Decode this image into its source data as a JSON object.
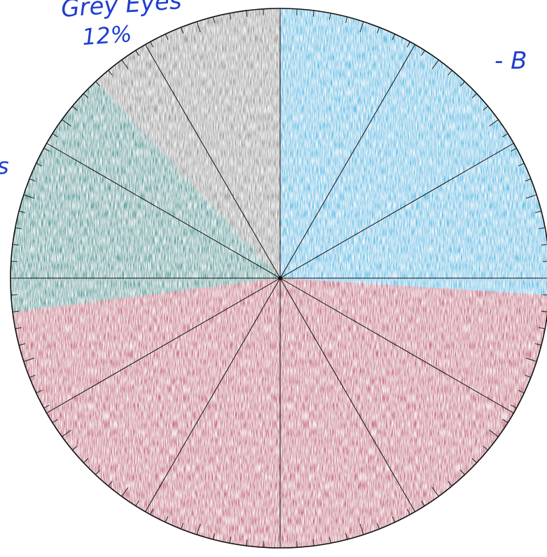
{
  "chart_data": {
    "type": "pie",
    "title": "",
    "slices": [
      {
        "label": "B",
        "value": 26,
        "color": "#4cbfe6"
      },
      {
        "label": "",
        "value": 47,
        "color": "#c7627b"
      },
      {
        "label": "",
        "value": 15,
        "color": "#3f9b9a"
      },
      {
        "label": "Grey Eyes",
        "value": 12,
        "color": "#9a9a9a"
      }
    ],
    "annotations": {
      "grey_label": "Grey Eyes",
      "grey_value": "12%",
      "blue_label": "- B",
      "green_label": "s"
    },
    "segment_dividers_count": 12,
    "rim_tick_count": 100
  }
}
